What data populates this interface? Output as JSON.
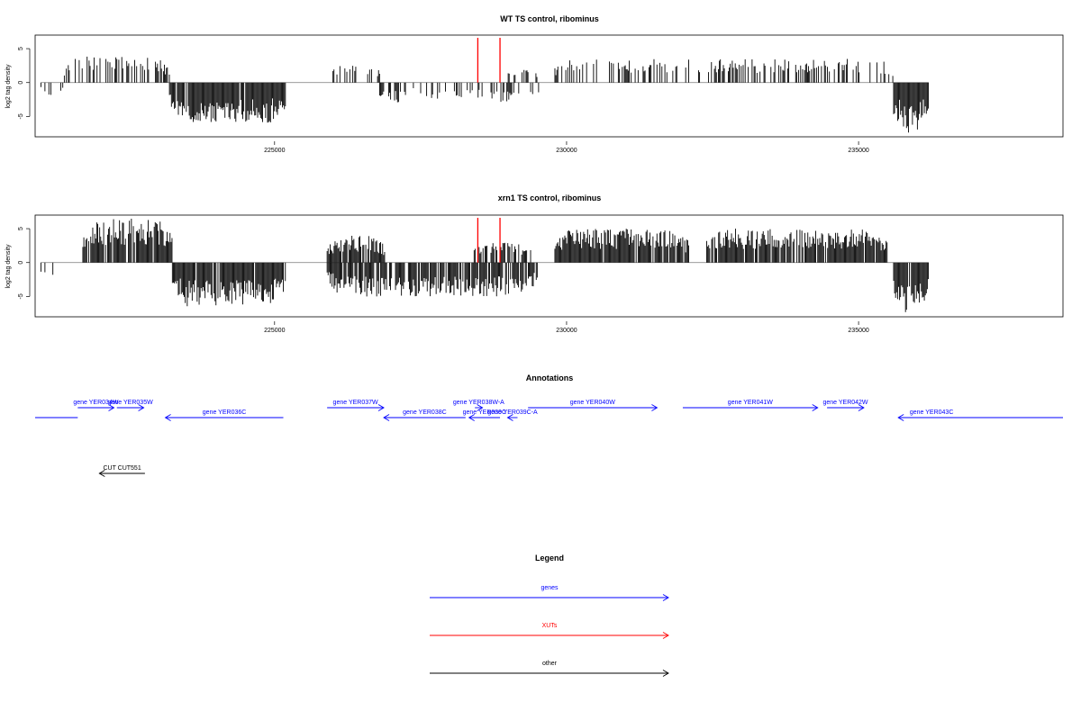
{
  "chart_data": [
    {
      "type": "bar",
      "title": "WT TS control, ribominus",
      "ylabel": "log2 tag density",
      "xlabel": "",
      "xlim": [
        220900,
        238500
      ],
      "ylim": [
        -8,
        7
      ],
      "yticks": [
        -5,
        0,
        5
      ],
      "xticks": [
        225000,
        230000,
        235000
      ],
      "grid": false,
      "colors": {
        "bars": "#000000",
        "xut_marker": "#ff0000",
        "axis": "#000000"
      },
      "xut_markers": [
        228480,
        228860
      ],
      "segments": [
        {
          "start": 221000,
          "end": 221400,
          "sign": -1,
          "max": 2.5,
          "density": 0.3
        },
        {
          "start": 221400,
          "end": 223200,
          "sign": 1,
          "max": 4,
          "density": 0.45
        },
        {
          "start": 223200,
          "end": 225200,
          "sign": -1,
          "max": 6,
          "density": 0.95
        },
        {
          "start": 226000,
          "end": 226800,
          "sign": 1,
          "max": 3,
          "density": 0.4
        },
        {
          "start": 226800,
          "end": 227400,
          "sign": -1,
          "max": 3,
          "density": 0.45
        },
        {
          "start": 227400,
          "end": 228400,
          "sign": -1,
          "max": 2.5,
          "density": 0.3
        },
        {
          "start": 228400,
          "end": 229200,
          "sign": -1,
          "max": 3,
          "density": 0.45
        },
        {
          "start": 229300,
          "end": 229550,
          "sign": -1,
          "max": 3,
          "density": 0.4
        },
        {
          "start": 229000,
          "end": 229500,
          "sign": 1,
          "max": 2.5,
          "density": 0.3
        },
        {
          "start": 229800,
          "end": 235600,
          "sign": 1,
          "max": 3.5,
          "density": 0.35
        },
        {
          "start": 235600,
          "end": 236200,
          "sign": -1,
          "max": 8,
          "density": 0.95
        }
      ]
    },
    {
      "type": "bar",
      "title": "xrn1 TS control, ribominus",
      "ylabel": "log2 tag density",
      "xlabel": "",
      "xlim": [
        220900,
        238500
      ],
      "ylim": [
        -8,
        7
      ],
      "yticks": [
        -5,
        0,
        5
      ],
      "xticks": [
        225000,
        230000,
        235000
      ],
      "grid": false,
      "colors": {
        "bars": "#000000",
        "xut_marker": "#ff0000",
        "axis": "#000000"
      },
      "xut_markers": [
        228480,
        228860
      ],
      "segments": [
        {
          "start": 221000,
          "end": 221300,
          "sign": -1,
          "max": 3,
          "density": 0.35
        },
        {
          "start": 221700,
          "end": 223250,
          "sign": 1,
          "max": 6.5,
          "density": 0.9
        },
        {
          "start": 223250,
          "end": 225200,
          "sign": -1,
          "max": 6.5,
          "density": 0.95
        },
        {
          "start": 225900,
          "end": 226900,
          "sign": 1,
          "max": 4,
          "density": 0.85
        },
        {
          "start": 225900,
          "end": 229500,
          "sign": -1,
          "max": 5,
          "density": 0.85
        },
        {
          "start": 228400,
          "end": 229400,
          "sign": 1,
          "max": 3,
          "density": 0.6
        },
        {
          "start": 229800,
          "end": 232100,
          "sign": 1,
          "max": 5,
          "density": 0.95
        },
        {
          "start": 232400,
          "end": 235500,
          "sign": 1,
          "max": 5,
          "density": 0.95
        },
        {
          "start": 235600,
          "end": 236200,
          "sign": -1,
          "max": 8,
          "density": 0.98
        }
      ]
    }
  ],
  "annotations": {
    "title": "Annotations",
    "genes_color": "#0000ff",
    "other_color": "#000000",
    "features": [
      {
        "label": "",
        "start": 220900,
        "end": 221630,
        "strand": "+",
        "type": "gene",
        "row": 1,
        "labelx": 220000
      },
      {
        "label": "gene YER034W",
        "start": 221630,
        "end": 222250,
        "strand": "+",
        "type": "gene",
        "row": 0
      },
      {
        "label": "gene YER035W",
        "start": 222300,
        "end": 222760,
        "strand": "+",
        "type": "gene",
        "row": 0
      },
      {
        "label": "gene YER036C",
        "start": 223130,
        "end": 225150,
        "strand": "-",
        "type": "gene",
        "row": 1
      },
      {
        "label": "gene YER037W",
        "start": 225900,
        "end": 226870,
        "strand": "+",
        "type": "gene",
        "row": 0
      },
      {
        "label": "gene YER038C",
        "start": 226870,
        "end": 228270,
        "strand": "-",
        "type": "gene",
        "row": 1
      },
      {
        "label": "gene YER038W-A",
        "start": 228430,
        "end": 228560,
        "strand": "+",
        "type": "gene",
        "row": 0
      },
      {
        "label": "gene YER039C",
        "start": 228330,
        "end": 228860,
        "strand": "-",
        "type": "gene",
        "row": 1
      },
      {
        "label": "gene YER039C-A",
        "start": 228990,
        "end": 229160,
        "strand": "-",
        "type": "gene",
        "row": 1
      },
      {
        "label": "gene YER040W",
        "start": 229340,
        "end": 231550,
        "strand": "+",
        "type": "gene",
        "row": 0
      },
      {
        "label": "gene YER041W",
        "start": 231990,
        "end": 234300,
        "strand": "+",
        "type": "gene",
        "row": 0
      },
      {
        "label": "gene YER042W",
        "start": 234460,
        "end": 235090,
        "strand": "+",
        "type": "gene",
        "row": 0
      },
      {
        "label": "gene YER043C",
        "start": 235680,
        "end": 238500,
        "strand": "-",
        "type": "gene",
        "row": 1,
        "labelx": 236250
      },
      {
        "label": "CUT CUT551",
        "start": 222000,
        "end": 222780,
        "strand": "-",
        "type": "other",
        "row": 2
      }
    ]
  },
  "legend": {
    "title": "Legend",
    "items": [
      {
        "label": "genes",
        "color": "#0000ff"
      },
      {
        "label": "XUTs",
        "color": "#ff0000"
      },
      {
        "label": "other",
        "color": "#000000"
      }
    ]
  }
}
